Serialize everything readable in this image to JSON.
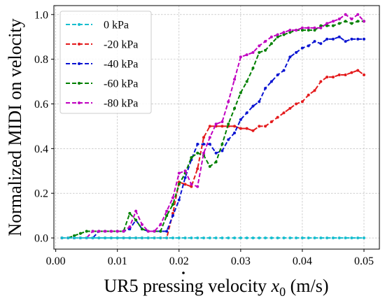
{
  "chart_data": {
    "type": "line",
    "xlabel": "UR5 pressing velocity",
    "xlabel_symbol": "x",
    "xlabel_subscript": "0",
    "xlabel_unit": "(m/s)",
    "ylabel": "Normalized MIDI on velocity",
    "xlim": [
      -0.0003,
      0.0525
    ],
    "ylim": [
      -0.05,
      1.04
    ],
    "xticks": [
      0.0,
      0.01,
      0.02,
      0.03,
      0.04,
      0.05
    ],
    "xtick_labels": [
      "0.00",
      "0.01",
      "0.02",
      "0.03",
      "0.04",
      "0.05"
    ],
    "yticks": [
      0.0,
      0.2,
      0.4,
      0.6,
      0.8,
      1.0
    ],
    "ytick_labels": [
      "0.0",
      "0.2",
      "0.4",
      "0.6",
      "0.8",
      "1.0"
    ],
    "grid": true,
    "legend_position": "top-left",
    "x": [
      0.001,
      0.002,
      0.003,
      0.004,
      0.005,
      0.006,
      0.007,
      0.008,
      0.009,
      0.01,
      0.011,
      0.012,
      0.013,
      0.014,
      0.015,
      0.016,
      0.017,
      0.018,
      0.019,
      0.02,
      0.021,
      0.022,
      0.023,
      0.024,
      0.025,
      0.026,
      0.027,
      0.028,
      0.029,
      0.03,
      0.031,
      0.032,
      0.033,
      0.034,
      0.035,
      0.036,
      0.037,
      0.038,
      0.039,
      0.04,
      0.041,
      0.042,
      0.043,
      0.044,
      0.045,
      0.046,
      0.047,
      0.048,
      0.049,
      0.05
    ],
    "series": [
      {
        "name": "0 kPa",
        "color": "#17becf",
        "values": [
          0,
          0,
          0,
          0,
          0,
          0,
          0,
          0,
          0,
          0,
          0,
          0,
          0,
          0,
          0,
          0,
          0,
          0,
          0,
          0,
          0,
          0,
          0,
          0,
          0,
          0,
          0,
          0,
          0,
          0,
          0,
          0,
          0,
          0,
          0,
          0,
          0,
          0,
          0,
          0,
          0,
          0,
          0,
          0,
          0,
          0,
          0,
          0,
          0,
          0
        ]
      },
      {
        "name": "-20 kPa",
        "color": "#e41a1c",
        "values": [
          0,
          0,
          0,
          0,
          0,
          0,
          0,
          0,
          0,
          0,
          0,
          0,
          0,
          0,
          0,
          0,
          0,
          0,
          0.11,
          0.25,
          0.24,
          0.23,
          0.31,
          0.45,
          0.5,
          0.5,
          0.5,
          0.5,
          0.5,
          0.49,
          0.49,
          0.48,
          0.5,
          0.5,
          0.52,
          0.54,
          0.56,
          0.58,
          0.6,
          0.61,
          0.64,
          0.66,
          0.7,
          0.72,
          0.72,
          0.73,
          0.73,
          0.74,
          0.75,
          0.73
        ]
      },
      {
        "name": "-40 kPa",
        "color": "#0a14d2",
        "values": [
          0,
          0,
          0,
          0,
          0,
          0,
          0.03,
          0.03,
          0.03,
          0.03,
          0.03,
          0.04,
          0.08,
          0.04,
          0.03,
          0.03,
          0.03,
          0.03,
          0.1,
          0.17,
          0.27,
          0.35,
          0.42,
          0.42,
          0.42,
          0.38,
          0.39,
          0.44,
          0.47,
          0.53,
          0.56,
          0.59,
          0.61,
          0.67,
          0.7,
          0.73,
          0.75,
          0.81,
          0.83,
          0.85,
          0.86,
          0.88,
          0.87,
          0.89,
          0.89,
          0.9,
          0.88,
          0.89,
          0.89,
          0.89
        ]
      },
      {
        "name": "-60 kPa",
        "color": "#008000",
        "values": [
          0,
          0,
          0.01,
          0.02,
          0.03,
          0.03,
          0.03,
          0.03,
          0.03,
          0.03,
          0.03,
          0.11,
          0.08,
          0.04,
          0.03,
          0.03,
          0.03,
          0.1,
          0.15,
          0.24,
          0.29,
          0.36,
          0.38,
          0.37,
          0.32,
          0.34,
          0.42,
          0.51,
          0.58,
          0.65,
          0.7,
          0.76,
          0.83,
          0.84,
          0.87,
          0.9,
          0.91,
          0.92,
          0.93,
          0.93,
          0.93,
          0.93,
          0.95,
          0.95,
          0.95,
          0.96,
          0.97,
          0.96,
          0.97,
          0.97
        ]
      },
      {
        "name": "-80 kPa",
        "color": "#c000c0",
        "values": [
          0,
          0,
          0,
          0,
          0,
          0.03,
          0.03,
          0.03,
          0.03,
          0.03,
          0.03,
          0.05,
          0.12,
          0.06,
          0.03,
          0.03,
          0.06,
          0.12,
          0.18,
          0.29,
          0.3,
          0.24,
          0.23,
          0.38,
          0.45,
          0.51,
          0.52,
          0.61,
          0.71,
          0.81,
          0.82,
          0.83,
          0.86,
          0.88,
          0.9,
          0.91,
          0.92,
          0.93,
          0.93,
          0.94,
          0.94,
          0.94,
          0.94,
          0.96,
          0.97,
          0.98,
          1.0,
          0.98,
          1.0,
          0.97
        ]
      }
    ]
  }
}
